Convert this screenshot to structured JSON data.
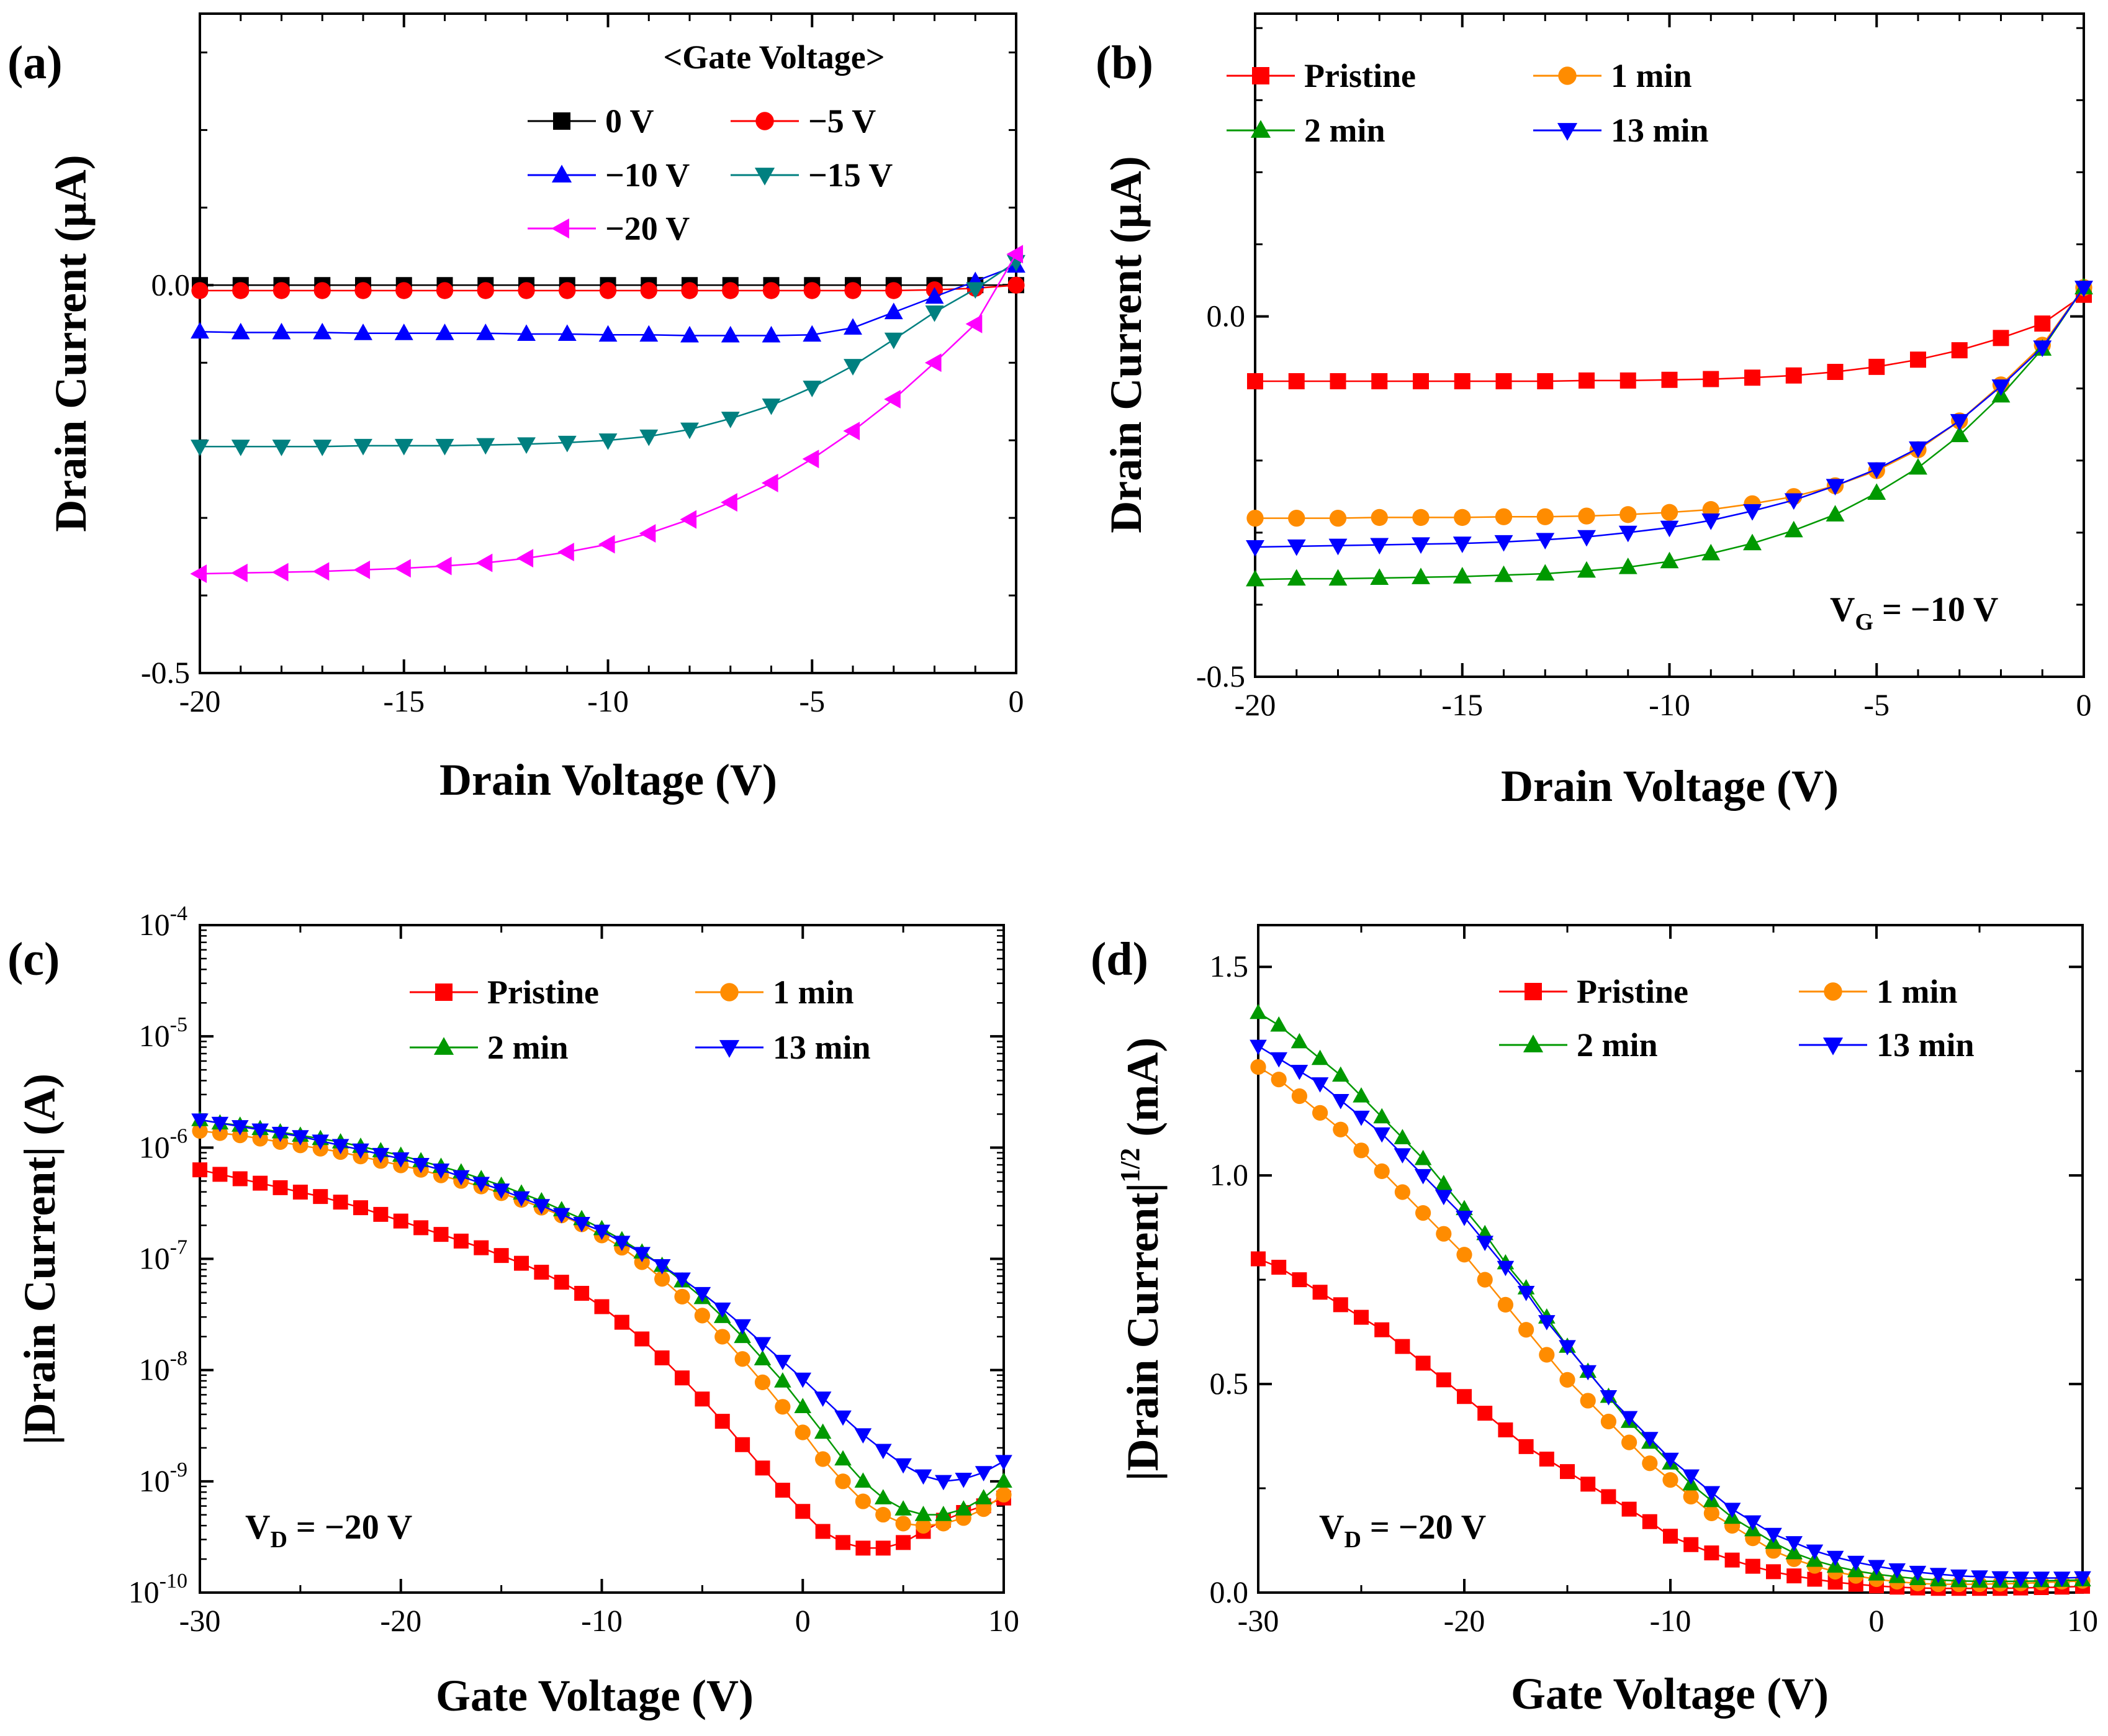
{
  "chart_data": [
    {
      "panel": "(a)",
      "type": "line",
      "xlabel": "Drain Voltage (V)",
      "ylabel": "Drain Current (μA)",
      "xlim": [
        -20,
        0
      ],
      "ylim": [
        -0.5,
        0.35
      ],
      "xticks": [
        -20,
        -15,
        -10,
        -5,
        0
      ],
      "xtick_labels": [
        "-20",
        "-15",
        "-10",
        "-5",
        "0"
      ],
      "yticks": [
        -0.5,
        0.0
      ],
      "ytick_labels": [
        "-0.5",
        "0.0"
      ],
      "legend_title": "<Gate Voltage>",
      "legend_position": "top-right",
      "x": [
        -20,
        -19,
        -18,
        -17,
        -16,
        -15,
        -14,
        -13,
        -12,
        -11,
        -10,
        -9,
        -8,
        -7,
        -6,
        -5,
        -4,
        -3,
        -2,
        -1,
        0
      ],
      "series": [
        {
          "name": "0 V",
          "color": "#000000",
          "marker": "square",
          "values": [
            0.0,
            0.0,
            0.0,
            0.0,
            0.0,
            0.0,
            0.0,
            0.0,
            0.0,
            0.0,
            0.0,
            0.0,
            0.0,
            0.0,
            0.0,
            0.0,
            0.0,
            0.0,
            0.0,
            0.0,
            0.0
          ]
        },
        {
          "name": "−5 V",
          "color": "#ff0000",
          "marker": "circle",
          "values": [
            -0.007,
            -0.007,
            -0.007,
            -0.007,
            -0.007,
            -0.007,
            -0.007,
            -0.007,
            -0.007,
            -0.007,
            -0.007,
            -0.007,
            -0.007,
            -0.007,
            -0.007,
            -0.007,
            -0.007,
            -0.007,
            -0.006,
            -0.004,
            0.0
          ]
        },
        {
          "name": "−10 V",
          "color": "#0000ff",
          "marker": "triangle-up",
          "values": [
            -0.06,
            -0.061,
            -0.061,
            -0.061,
            -0.062,
            -0.062,
            -0.062,
            -0.062,
            -0.063,
            -0.063,
            -0.064,
            -0.064,
            -0.065,
            -0.065,
            -0.065,
            -0.064,
            -0.055,
            -0.035,
            -0.015,
            0.005,
            0.025
          ]
        },
        {
          "name": "−15 V",
          "color": "#008080",
          "marker": "triangle-down",
          "values": [
            -0.208,
            -0.208,
            -0.208,
            -0.208,
            -0.207,
            -0.207,
            -0.207,
            -0.206,
            -0.205,
            -0.203,
            -0.2,
            -0.195,
            -0.186,
            -0.172,
            -0.155,
            -0.132,
            -0.104,
            -0.07,
            -0.035,
            -0.005,
            0.03
          ]
        },
        {
          "name": "−20 V",
          "color": "#ff00ff",
          "marker": "triangle-left",
          "values": [
            -0.372,
            -0.371,
            -0.37,
            -0.369,
            -0.367,
            -0.365,
            -0.362,
            -0.358,
            -0.352,
            -0.344,
            -0.334,
            -0.32,
            -0.302,
            -0.28,
            -0.255,
            -0.224,
            -0.188,
            -0.147,
            -0.1,
            -0.05,
            0.04
          ]
        }
      ]
    },
    {
      "panel": "(b)",
      "type": "line",
      "xlabel": "Drain Voltage (V)",
      "ylabel": "Drain Current (μA)",
      "xlim": [
        -20,
        0
      ],
      "ylim": [
        -0.5,
        0.42
      ],
      "xticks": [
        -20,
        -15,
        -10,
        -5,
        0
      ],
      "xtick_labels": [
        "-20",
        "-15",
        "-10",
        "-5",
        "0"
      ],
      "yticks": [
        -0.5,
        0.0
      ],
      "ytick_labels": [
        "-0.5",
        "0.0"
      ],
      "annotation": {
        "main": "V",
        "sub": "G",
        "rest": " = −10 V"
      },
      "legend_position": "top",
      "x": [
        -20,
        -19,
        -18,
        -17,
        -16,
        -15,
        -14,
        -13,
        -12,
        -11,
        -10,
        -9,
        -8,
        -7,
        -6,
        -5,
        -4,
        -3,
        -2,
        -1,
        0
      ],
      "series": [
        {
          "name": "Pristine",
          "color": "#ff0000",
          "marker": "square",
          "values": [
            -0.09,
            -0.09,
            -0.09,
            -0.09,
            -0.09,
            -0.09,
            -0.09,
            -0.09,
            -0.089,
            -0.089,
            -0.088,
            -0.087,
            -0.085,
            -0.082,
            -0.077,
            -0.07,
            -0.06,
            -0.047,
            -0.03,
            -0.01,
            0.03
          ]
        },
        {
          "name": "1 min",
          "color": "#ff8c00",
          "marker": "circle",
          "values": [
            -0.28,
            -0.28,
            -0.28,
            -0.279,
            -0.279,
            -0.279,
            -0.278,
            -0.278,
            -0.277,
            -0.275,
            -0.272,
            -0.268,
            -0.26,
            -0.25,
            -0.235,
            -0.214,
            -0.185,
            -0.145,
            -0.095,
            -0.04,
            0.04
          ]
        },
        {
          "name": "2 min",
          "color": "#009900",
          "marker": "triangle-up",
          "values": [
            -0.365,
            -0.364,
            -0.364,
            -0.363,
            -0.362,
            -0.361,
            -0.359,
            -0.357,
            -0.353,
            -0.348,
            -0.34,
            -0.329,
            -0.315,
            -0.297,
            -0.275,
            -0.245,
            -0.21,
            -0.165,
            -0.11,
            -0.045,
            0.04
          ]
        },
        {
          "name": "13 min",
          "color": "#0000ff",
          "marker": "triangle-down",
          "values": [
            -0.32,
            -0.319,
            -0.318,
            -0.317,
            -0.316,
            -0.315,
            -0.313,
            -0.31,
            -0.306,
            -0.3,
            -0.293,
            -0.283,
            -0.27,
            -0.255,
            -0.235,
            -0.212,
            -0.183,
            -0.145,
            -0.097,
            -0.043,
            0.04
          ]
        }
      ]
    },
    {
      "panel": "(c)",
      "type": "scatter",
      "yscale": "log",
      "xlabel": "Gate Voltage (V)",
      "ylabel": "|Drain Current| (A)",
      "xlim": [
        -30,
        10
      ],
      "ylim_exp": [
        -10,
        -4
      ],
      "xticks": [
        -30,
        -20,
        -10,
        0,
        10
      ],
      "xtick_labels": [
        "-30",
        "-20",
        "-10",
        "0",
        "10"
      ],
      "ytick_base": "10",
      "ytick_exponents": [
        "-10",
        "-9",
        "-8",
        "-7",
        "-6",
        "-5",
        "-4"
      ],
      "annotation": {
        "main": "V",
        "sub": "D",
        "rest": " = −20 V"
      },
      "legend_position": "top-right",
      "x": [
        -30,
        -29,
        -28,
        -27,
        -26,
        -25,
        -24,
        -23,
        -22,
        -21,
        -20,
        -19,
        -18,
        -17,
        -16,
        -15,
        -14,
        -13,
        -12,
        -11,
        -10,
        -9,
        -8,
        -7,
        -6,
        -5,
        -4,
        -3,
        -2,
        -1,
        0,
        1,
        2,
        3,
        4,
        5,
        6,
        7,
        8,
        9,
        10
      ],
      "series": [
        {
          "name": "Pristine",
          "color": "#ff0000",
          "marker": "square",
          "log10_values": [
            -6.2,
            -6.24,
            -6.28,
            -6.32,
            -6.36,
            -6.4,
            -6.44,
            -6.49,
            -6.54,
            -6.6,
            -6.66,
            -6.72,
            -6.78,
            -6.84,
            -6.9,
            -6.97,
            -7.04,
            -7.12,
            -7.21,
            -7.31,
            -7.43,
            -7.57,
            -7.72,
            -7.89,
            -8.07,
            -8.26,
            -8.46,
            -8.67,
            -8.88,
            -9.08,
            -9.27,
            -9.45,
            -9.55,
            -9.6,
            -9.6,
            -9.55,
            -9.45,
            -9.35,
            -9.28,
            -9.22,
            -9.15
          ]
        },
        {
          "name": "1 min",
          "color": "#ff8c00",
          "marker": "circle",
          "log10_values": [
            -5.85,
            -5.87,
            -5.89,
            -5.92,
            -5.95,
            -5.98,
            -6.01,
            -6.04,
            -6.08,
            -6.12,
            -6.16,
            -6.2,
            -6.25,
            -6.3,
            -6.35,
            -6.41,
            -6.47,
            -6.54,
            -6.61,
            -6.69,
            -6.79,
            -6.9,
            -7.03,
            -7.18,
            -7.34,
            -7.51,
            -7.7,
            -7.9,
            -8.11,
            -8.33,
            -8.56,
            -8.8,
            -9.0,
            -9.18,
            -9.3,
            -9.38,
            -9.4,
            -9.38,
            -9.33,
            -9.25,
            -9.12
          ]
        },
        {
          "name": "2 min",
          "color": "#009900",
          "marker": "triangle-up",
          "log10_values": [
            -5.75,
            -5.78,
            -5.8,
            -5.83,
            -5.86,
            -5.89,
            -5.92,
            -5.95,
            -5.99,
            -6.03,
            -6.07,
            -6.12,
            -6.17,
            -6.22,
            -6.28,
            -6.34,
            -6.41,
            -6.48,
            -6.56,
            -6.64,
            -6.73,
            -6.83,
            -6.94,
            -7.06,
            -7.2,
            -7.35,
            -7.52,
            -7.7,
            -7.9,
            -8.1,
            -8.33,
            -8.56,
            -8.8,
            -9.0,
            -9.15,
            -9.25,
            -9.3,
            -9.3,
            -9.25,
            -9.15,
            -9.0
          ]
        },
        {
          "name": "13 min",
          "color": "#0000ff",
          "marker": "triangle-down",
          "log10_values": [
            -5.75,
            -5.78,
            -5.81,
            -5.84,
            -5.87,
            -5.9,
            -5.94,
            -5.98,
            -6.02,
            -6.06,
            -6.1,
            -6.15,
            -6.2,
            -6.26,
            -6.32,
            -6.38,
            -6.45,
            -6.52,
            -6.6,
            -6.68,
            -6.75,
            -6.85,
            -6.95,
            -7.06,
            -7.18,
            -7.31,
            -7.45,
            -7.6,
            -7.76,
            -7.92,
            -8.08,
            -8.25,
            -8.42,
            -8.58,
            -8.72,
            -8.85,
            -8.95,
            -9.0,
            -8.98,
            -8.92,
            -8.82
          ]
        }
      ]
    },
    {
      "panel": "(d)",
      "type": "scatter",
      "xlabel": "Gate Voltage (V)",
      "ylabel": "|Drain Current|",
      "ylabel_sup": "1/2",
      "ylabel_unit": " (mA)",
      "xlim": [
        -30,
        10
      ],
      "ylim": [
        0,
        1.6
      ],
      "xticks": [
        -30,
        -20,
        -10,
        0,
        10
      ],
      "xtick_labels": [
        "-30",
        "-20",
        "-10",
        "0",
        "10"
      ],
      "yticks": [
        0.0,
        0.5,
        1.0,
        1.5
      ],
      "ytick_labels": [
        "0.0",
        "0.5",
        "1.0",
        "1.5"
      ],
      "annotation": {
        "main": "V",
        "sub": "D",
        "rest": " = −20 V"
      },
      "legend_position": "top-right",
      "x": [
        -30,
        -29,
        -28,
        -27,
        -26,
        -25,
        -24,
        -23,
        -22,
        -21,
        -20,
        -19,
        -18,
        -17,
        -16,
        -15,
        -14,
        -13,
        -12,
        -11,
        -10,
        -9,
        -8,
        -7,
        -6,
        -5,
        -4,
        -3,
        -2,
        -1,
        0,
        1,
        2,
        3,
        4,
        5,
        6,
        7,
        8,
        9,
        10
      ],
      "series": [
        {
          "name": "Pristine",
          "color": "#ff0000",
          "marker": "square",
          "values": [
            0.8,
            0.78,
            0.75,
            0.72,
            0.69,
            0.66,
            0.63,
            0.59,
            0.55,
            0.51,
            0.47,
            0.43,
            0.39,
            0.35,
            0.32,
            0.29,
            0.26,
            0.23,
            0.2,
            0.17,
            0.135,
            0.115,
            0.095,
            0.078,
            0.063,
            0.05,
            0.04,
            0.032,
            0.025,
            0.02,
            0.016,
            0.013,
            0.011,
            0.01,
            0.01,
            0.01,
            0.01,
            0.011,
            0.012,
            0.013,
            0.015
          ]
        },
        {
          "name": "1 min",
          "color": "#ff8c00",
          "marker": "circle",
          "values": [
            1.26,
            1.23,
            1.19,
            1.15,
            1.11,
            1.06,
            1.01,
            0.96,
            0.91,
            0.86,
            0.81,
            0.75,
            0.69,
            0.63,
            0.57,
            0.51,
            0.46,
            0.41,
            0.36,
            0.31,
            0.27,
            0.23,
            0.19,
            0.16,
            0.13,
            0.1,
            0.08,
            0.064,
            0.05,
            0.04,
            0.032,
            0.026,
            0.022,
            0.02,
            0.02,
            0.02,
            0.021,
            0.022,
            0.024,
            0.026,
            0.028
          ]
        },
        {
          "name": "2 min",
          "color": "#009900",
          "marker": "triangle-up",
          "values": [
            1.39,
            1.36,
            1.32,
            1.28,
            1.24,
            1.19,
            1.14,
            1.09,
            1.04,
            0.98,
            0.92,
            0.86,
            0.79,
            0.73,
            0.66,
            0.59,
            0.53,
            0.47,
            0.41,
            0.36,
            0.31,
            0.26,
            0.22,
            0.18,
            0.15,
            0.12,
            0.095,
            0.077,
            0.063,
            0.052,
            0.044,
            0.038,
            0.033,
            0.03,
            0.028,
            0.027,
            0.027,
            0.027,
            0.028,
            0.029,
            0.03
          ]
        },
        {
          "name": "13 min",
          "color": "#0000ff",
          "marker": "triangle-down",
          "values": [
            1.31,
            1.28,
            1.25,
            1.22,
            1.18,
            1.14,
            1.1,
            1.05,
            1.0,
            0.95,
            0.9,
            0.84,
            0.78,
            0.72,
            0.65,
            0.59,
            0.53,
            0.47,
            0.42,
            0.37,
            0.32,
            0.28,
            0.24,
            0.2,
            0.17,
            0.14,
            0.12,
            0.1,
            0.085,
            0.073,
            0.063,
            0.055,
            0.049,
            0.044,
            0.04,
            0.038,
            0.036,
            0.035,
            0.035,
            0.035,
            0.036
          ]
        }
      ]
    }
  ]
}
